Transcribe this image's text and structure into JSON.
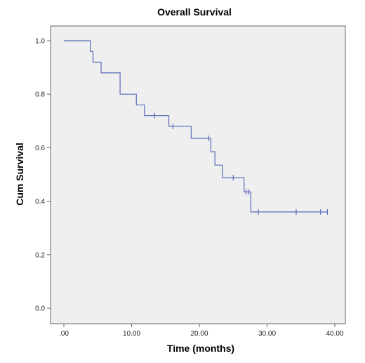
{
  "chart_data": {
    "type": "line",
    "title": "Overall Survival",
    "xlabel": "Time (months)",
    "ylabel": "Cum Survival",
    "xlim": [
      0,
      40
    ],
    "ylim": [
      0,
      1.0
    ],
    "x_ticks": [
      ".00",
      "10.00",
      "20.00",
      "30.00",
      "40.00"
    ],
    "x_tick_values": [
      0,
      10,
      20,
      30,
      40
    ],
    "y_ticks": [
      "0.0",
      "0.2",
      "0.4",
      "0.6",
      "0.8",
      "1.0"
    ],
    "y_tick_values": [
      0,
      0.2,
      0.4,
      0.6,
      0.8,
      1.0
    ],
    "grid": false,
    "series": [
      {
        "step_points": [
          {
            "x": 0,
            "y": 1.0
          },
          {
            "x": 3.9,
            "y": 0.96
          },
          {
            "x": 4.3,
            "y": 0.92
          },
          {
            "x": 5.5,
            "y": 0.88
          },
          {
            "x": 8.3,
            "y": 0.8
          },
          {
            "x": 10.7,
            "y": 0.76
          },
          {
            "x": 11.9,
            "y": 0.72
          },
          {
            "x": 15.5,
            "y": 0.68
          },
          {
            "x": 18.8,
            "y": 0.635
          },
          {
            "x": 21.7,
            "y": 0.585
          },
          {
            "x": 22.3,
            "y": 0.535
          },
          {
            "x": 23.4,
            "y": 0.488
          },
          {
            "x": 26.6,
            "y": 0.435
          },
          {
            "x": 27.6,
            "y": 0.36
          },
          {
            "x": 39.0,
            "y": 0.36
          }
        ],
        "censored_points": [
          {
            "x": 13.4,
            "y": 0.72
          },
          {
            "x": 16.1,
            "y": 0.68
          },
          {
            "x": 21.4,
            "y": 0.635
          },
          {
            "x": 25.0,
            "y": 0.488
          },
          {
            "x": 26.9,
            "y": 0.435
          },
          {
            "x": 27.3,
            "y": 0.435
          },
          {
            "x": 28.7,
            "y": 0.36
          },
          {
            "x": 34.3,
            "y": 0.36
          },
          {
            "x": 37.9,
            "y": 0.36
          },
          {
            "x": 38.9,
            "y": 0.36
          }
        ]
      }
    ]
  },
  "colors": {
    "plot_background": "#efefef",
    "survival_line": "#5a6bb8",
    "axis": "#666666"
  }
}
